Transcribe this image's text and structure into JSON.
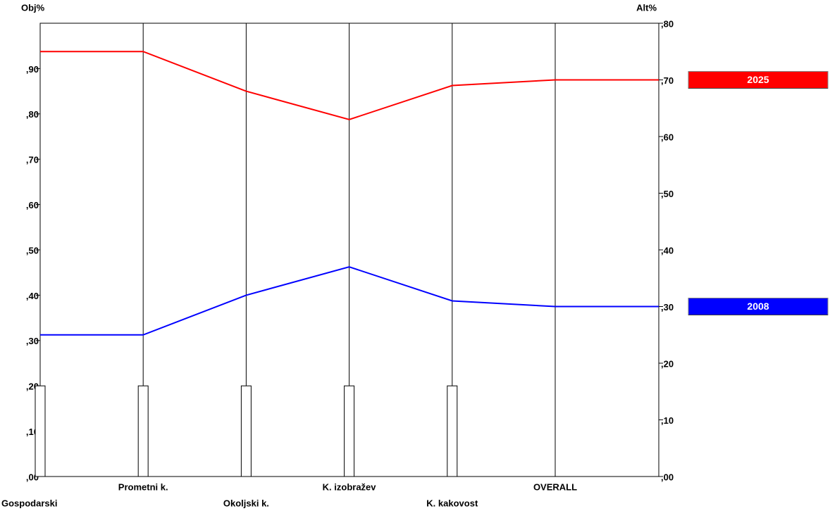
{
  "chart_data": {
    "type": "line",
    "y_label": "Obj%",
    "y2_label": "Alt%",
    "categories": [
      "Gospodarski",
      "Prometni k.",
      "Okoljski k.",
      "K. izobražev",
      "K. kakovost",
      "OVERALL"
    ],
    "bar_values": [
      0.2,
      0.2,
      0.2,
      0.2,
      0.2,
      null
    ],
    "series": [
      {
        "name": "2025",
        "color": "#ff0000",
        "axis": "y2",
        "values": [
          0.75,
          0.75,
          0.68,
          0.63,
          0.69,
          0.7
        ]
      },
      {
        "name": "2008",
        "color": "#0000ff",
        "axis": "y2",
        "values": [
          0.25,
          0.25,
          0.32,
          0.37,
          0.31,
          0.3
        ]
      }
    ],
    "ylim": [
      0,
      1.0
    ],
    "yticks": [
      {
        "value": 0,
        "label": ",00"
      },
      {
        "value": 0.1,
        "label": ",10"
      },
      {
        "value": 0.2,
        "label": ",20"
      },
      {
        "value": 0.3,
        "label": ",30"
      },
      {
        "value": 0.4,
        "label": ",40"
      },
      {
        "value": 0.5,
        "label": ",50"
      },
      {
        "value": 0.6,
        "label": ",60"
      },
      {
        "value": 0.7,
        "label": ",70"
      },
      {
        "value": 0.8,
        "label": ",80"
      },
      {
        "value": 0.9,
        "label": ",90"
      }
    ],
    "y2lim": [
      0,
      0.8
    ],
    "y2ticks": [
      {
        "value": 0,
        "label": ",00"
      },
      {
        "value": 0.1,
        "label": ",10"
      },
      {
        "value": 0.2,
        "label": ",20"
      },
      {
        "value": 0.3,
        "label": ",30"
      },
      {
        "value": 0.4,
        "label": ",40"
      },
      {
        "value": 0.5,
        "label": ",50"
      },
      {
        "value": 0.6,
        "label": ",60"
      },
      {
        "value": 0.7,
        "label": ",70"
      },
      {
        "value": 0.8,
        "label": ",80"
      }
    ]
  }
}
